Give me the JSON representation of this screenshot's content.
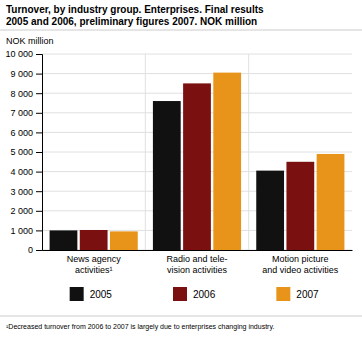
{
  "chart_data": {
    "type": "bar",
    "title": "Turnover, by industry group. Enterprises. Final results\n2005 and 2006, preliminary figures 2007. NOK million",
    "ylabel": "NOK million",
    "footnote": "¹Decreased turnover from 2006 to 2007 is largely due to enterprises changing industry.",
    "categories": [
      "News agency\nactivities¹",
      "Radio and tele-\nvision activities",
      "Motion picture\nand video activities"
    ],
    "series": [
      {
        "name": "2005",
        "color": "#111111",
        "values": [
          1000,
          7600,
          4050
        ]
      },
      {
        "name": "2006",
        "color": "#7B1010",
        "values": [
          1020,
          8500,
          4500
        ]
      },
      {
        "name": "2007",
        "color": "#E8941A",
        "values": [
          950,
          9050,
          4900
        ]
      }
    ],
    "ylim": [
      0,
      10000
    ],
    "yticks": [
      0,
      {
        "value": 1000,
        "label": "1 000"
      },
      {
        "value": 2000,
        "label": "2 000"
      },
      {
        "value": 3000,
        "label": "3 000"
      },
      {
        "value": 4000,
        "label": "4 000"
      },
      {
        "value": 5000,
        "label": "5 000"
      },
      {
        "value": 6000,
        "label": "6 000"
      },
      {
        "value": 7000,
        "label": "7 000"
      },
      {
        "value": 8000,
        "label": "8 000"
      },
      {
        "value": 9000,
        "label": "9 000"
      },
      {
        "value": 10000,
        "label": "10 000"
      }
    ],
    "grid": true,
    "legend": "bottom"
  }
}
